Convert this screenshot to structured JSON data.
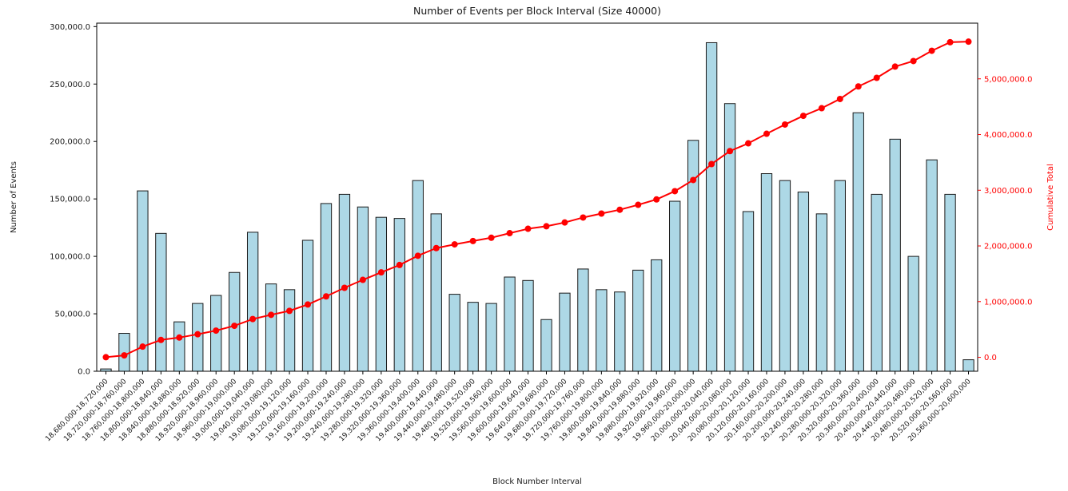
{
  "chart_data": {
    "type": "bar",
    "title": "Number of Events per Block Interval (Size 40000)",
    "xlabel": "Block Number Interval",
    "ylabel": "Number of Events",
    "ylabel_right": "Cumulative Total",
    "grid": false,
    "legend": "none",
    "categories": [
      "18,680,000-18,720,000",
      "18,720,000-18,760,000",
      "18,760,000-18,800,000",
      "18,800,000-18,840,000",
      "18,840,000-18,880,000",
      "18,880,000-18,920,000",
      "18,920,000-18,960,000",
      "18,960,000-19,000,000",
      "19,000,000-19,040,000",
      "19,040,000-19,080,000",
      "19,080,000-19,120,000",
      "19,120,000-19,160,000",
      "19,160,000-19,200,000",
      "19,200,000-19,240,000",
      "19,240,000-19,280,000",
      "19,280,000-19,320,000",
      "19,320,000-19,360,000",
      "19,360,000-19,400,000",
      "19,400,000-19,440,000",
      "19,440,000-19,480,000",
      "19,480,000-19,520,000",
      "19,520,000-19,560,000",
      "19,560,000-19,600,000",
      "19,600,000-19,640,000",
      "19,640,000-19,680,000",
      "19,680,000-19,720,000",
      "19,720,000-19,760,000",
      "19,760,000-19,800,000",
      "19,800,000-19,840,000",
      "19,840,000-19,880,000",
      "19,880,000-19,920,000",
      "19,920,000-19,960,000",
      "19,960,000-20,000,000",
      "20,000,000-20,040,000",
      "20,040,000-20,080,000",
      "20,080,000-20,120,000",
      "20,120,000-20,160,000",
      "20,160,000-20,200,000",
      "20,200,000-20,240,000",
      "20,240,000-20,280,000",
      "20,280,000-20,320,000",
      "20,320,000-20,360,000",
      "20,360,000-20,400,000",
      "20,400,000-20,440,000",
      "20,440,000-20,480,000",
      "20,480,000-20,520,000",
      "20,520,000-20,560,000",
      "20,560,000-20,600,000"
    ],
    "series": [
      {
        "name": "Number of Events",
        "type": "bar",
        "yaxis": "left",
        "values": [
          2000,
          33000,
          157000,
          120000,
          43000,
          59000,
          66000,
          86000,
          121000,
          76000,
          71000,
          114000,
          146000,
          154000,
          143000,
          134000,
          133000,
          166000,
          137000,
          67000,
          60000,
          59000,
          82000,
          79000,
          45000,
          68000,
          89000,
          71000,
          69000,
          88000,
          97000,
          148000,
          201000,
          286000,
          233000,
          139000,
          172000,
          166000,
          156000,
          137000,
          166000,
          225000,
          154000,
          202000,
          100000,
          184000,
          154000,
          10000
        ]
      },
      {
        "name": "Cumulative Total",
        "type": "line",
        "yaxis": "right",
        "values": [
          2000,
          35000,
          192000,
          312000,
          355000,
          414000,
          480000,
          566000,
          687000,
          763000,
          834000,
          948000,
          1094000,
          1248000,
          1391000,
          1525000,
          1658000,
          1824000,
          1961000,
          2028000,
          2088000,
          2147000,
          2229000,
          2308000,
          2353000,
          2421000,
          2510000,
          2581000,
          2650000,
          2738000,
          2835000,
          2983000,
          3184000,
          3470000,
          3703000,
          3842000,
          4014000,
          4180000,
          4336000,
          4473000,
          4639000,
          4864000,
          5018000,
          5220000,
          5320000,
          5504000,
          5658000,
          5668000
        ]
      }
    ],
    "left_axis": {
      "ticks": [
        0,
        50000,
        100000,
        150000,
        200000,
        250000,
        300000
      ],
      "tick_labels": [
        "0.0",
        "50,000.0",
        "100,000.0",
        "150,000.0",
        "200,000.0",
        "250,000.0",
        "300,000.0"
      ],
      "range": [
        0,
        303000
      ]
    },
    "right_axis": {
      "ticks": [
        0,
        1000000,
        2000000,
        3000000,
        4000000,
        5000000
      ],
      "tick_labels": [
        "0.0",
        "1,000,000.0",
        "2,000,000.0",
        "3,000,000.0",
        "4,000,000.0",
        "5,000,000.0"
      ],
      "range": [
        -250000,
        6000000
      ]
    },
    "colors": {
      "bar_fill": "#add8e6",
      "bar_edge": "#1a1a1a",
      "line": "#ff0000",
      "axis": "#000000",
      "text": "#1a1a1a"
    }
  }
}
